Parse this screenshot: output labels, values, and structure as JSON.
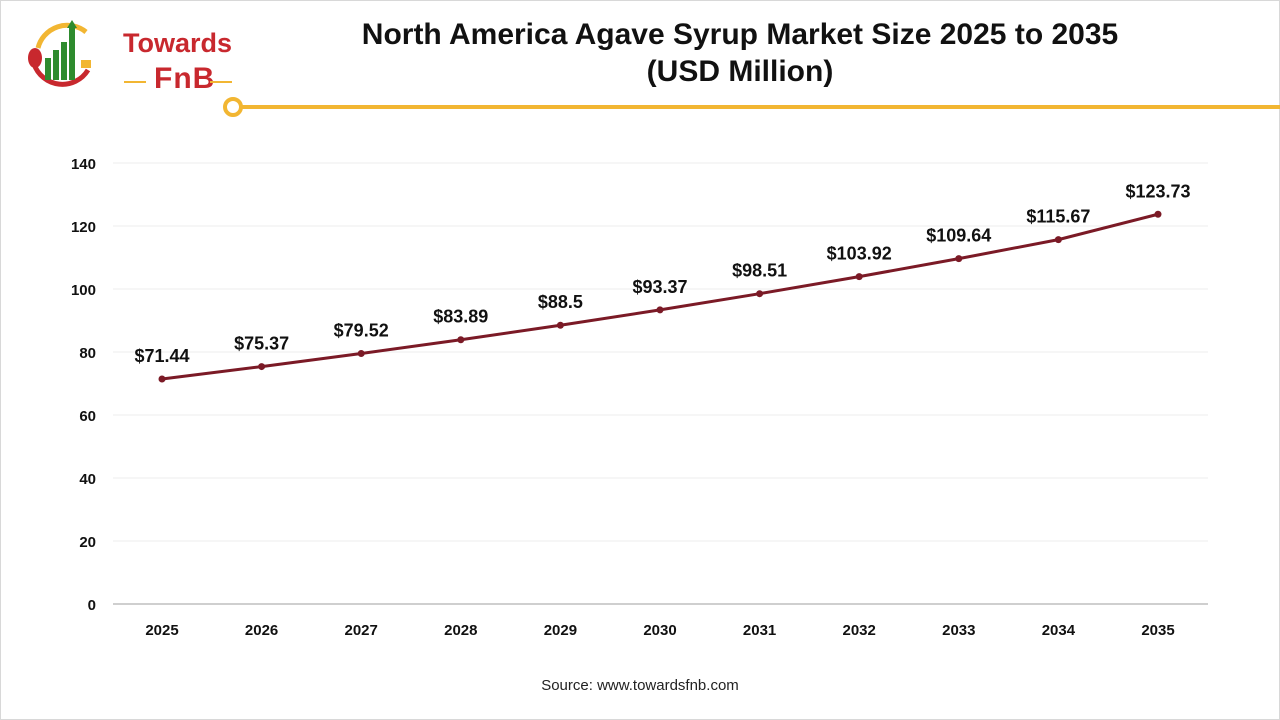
{
  "header": {
    "logo_text_top": "Towards",
    "logo_text_bottom": "FnB",
    "title_line1": "North America Agave Syrup Market Size 2025 to 2035",
    "title_line2": "(USD Million)"
  },
  "source": "Source: www.towardsfnb.com",
  "colors": {
    "line": "#7b1a26",
    "accent": "#f2b632",
    "brand_red": "#c8282e",
    "brand_green": "#2e8b2e"
  },
  "chart_data": {
    "type": "line",
    "title": "North America Agave Syrup Market Size 2025 to 2035 (USD Million)",
    "categories": [
      "2025",
      "2026",
      "2027",
      "2028",
      "2029",
      "2030",
      "2031",
      "2032",
      "2033",
      "2034",
      "2035"
    ],
    "values": [
      71.44,
      75.37,
      79.52,
      83.89,
      88.5,
      93.37,
      98.51,
      103.92,
      109.64,
      115.67,
      123.73
    ],
    "data_labels": [
      "$71.44",
      "$75.37",
      "$79.52",
      "$83.89",
      "$88.5",
      "$93.37",
      "$98.51",
      "$103.92",
      "$109.64",
      "$115.67",
      "$123.73"
    ],
    "yticks": [
      0,
      20,
      40,
      60,
      80,
      100,
      120,
      140
    ],
    "ylim": [
      0,
      140
    ],
    "grid": true,
    "legend": "none"
  }
}
